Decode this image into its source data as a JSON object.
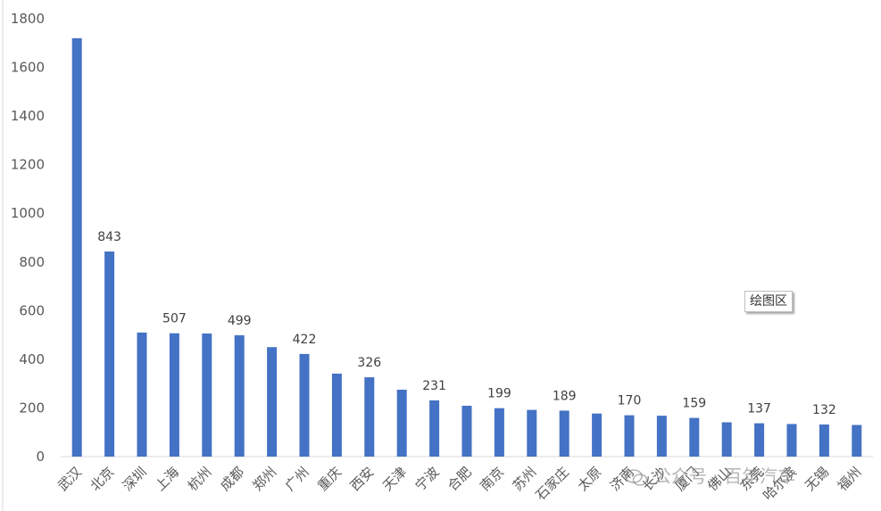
{
  "chart_data": {
    "type": "bar",
    "categories": [
      "武汉",
      "北京",
      "深圳",
      "上海",
      "杭州",
      "成都",
      "郑州",
      "广州",
      "重庆",
      "西安",
      "天津",
      "宁波",
      "合肥",
      "南京",
      "苏州",
      "石家庄",
      "太原",
      "济南",
      "长沙",
      "厦门",
      "佛山",
      "东莞",
      "哈尔滨",
      "无锡",
      "福州"
    ],
    "values": [
      1720,
      843,
      510,
      507,
      506,
      499,
      450,
      422,
      341,
      326,
      275,
      231,
      209,
      199,
      192,
      189,
      177,
      170,
      168,
      159,
      141,
      137,
      134,
      132,
      130
    ],
    "labeled_values": [
      null,
      843,
      null,
      507,
      null,
      499,
      null,
      422,
      null,
      326,
      null,
      231,
      null,
      199,
      null,
      189,
      null,
      170,
      null,
      159,
      null,
      137,
      null,
      132,
      null
    ],
    "yticks": [
      0,
      200,
      400,
      600,
      800,
      1000,
      1200,
      1400,
      1600,
      1800
    ],
    "ylim": [
      0,
      1800
    ],
    "bar_color": "#4472c4",
    "grid": false,
    "title": "",
    "xlabel": "",
    "ylabel": ""
  },
  "tooltip": {
    "text": "绘图区"
  },
  "watermark": {
    "text": "公众号 · 百年汽车",
    "icon": "wechat-icon"
  }
}
